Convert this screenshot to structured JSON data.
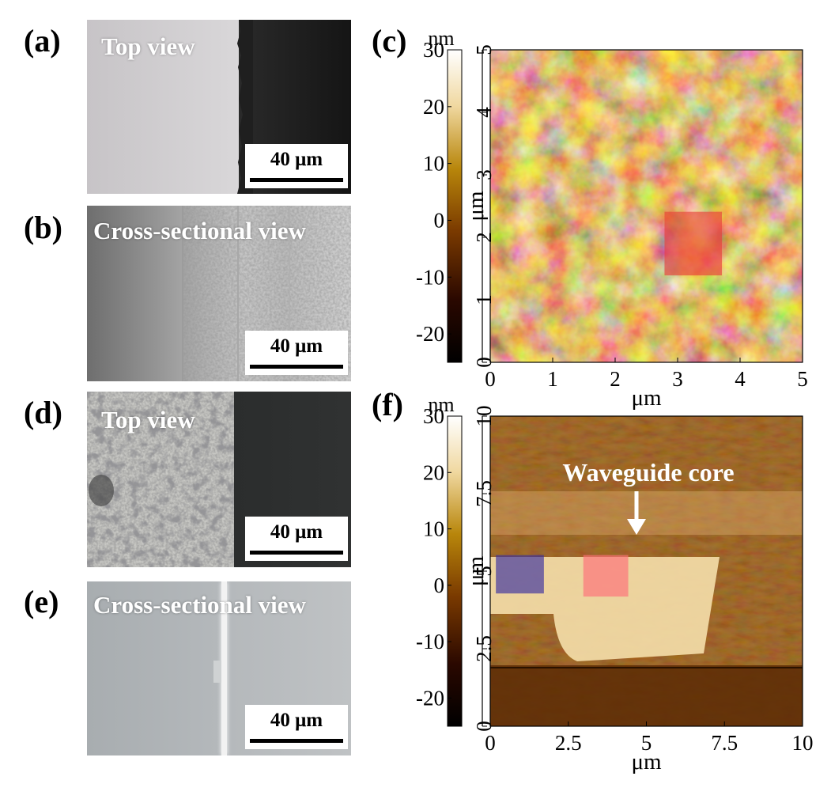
{
  "panels": {
    "a": {
      "label": "(a)",
      "caption": "Top view",
      "scalebar": "40 μm"
    },
    "b": {
      "label": "(b)",
      "caption": "Cross-sectional view",
      "scalebar": "40 μm"
    },
    "c": {
      "label": "(c)"
    },
    "d": {
      "label": "(d)",
      "caption": "Top view",
      "scalebar": "40 μm"
    },
    "e": {
      "label": "(e)",
      "caption": "Cross-sectional view",
      "scalebar": "40 μm"
    },
    "f": {
      "label": "(f)",
      "annotation": "Waveguide core"
    }
  },
  "chart_data": [
    {
      "type": "heatmap",
      "panel": "c",
      "colorbar": {
        "unit": "nm",
        "range": [
          -25,
          30
        ],
        "ticks": [
          "30",
          "20",
          "10",
          "0",
          "-10",
          "-20"
        ]
      },
      "xlabel": "μm",
      "ylabel": "μm",
      "xlim": [
        0,
        5
      ],
      "ylim": [
        0,
        5
      ],
      "xticks": [
        "0",
        "1",
        "2",
        "3",
        "4",
        "5"
      ],
      "yticks": [
        "0",
        "1",
        "2",
        "3",
        "4",
        "5"
      ],
      "highlights": [
        {
          "color": "#e8403a",
          "x": [
            2.8,
            3.7
          ],
          "y": [
            1.4,
            2.4
          ]
        }
      ]
    },
    {
      "type": "heatmap",
      "panel": "f",
      "colorbar": {
        "unit": "nm",
        "range": [
          -25,
          30
        ],
        "ticks": [
          "30",
          "20",
          "10",
          "0",
          "-10",
          "-20"
        ]
      },
      "xlabel": "μm",
      "ylabel": "μm",
      "xlim": [
        0,
        10
      ],
      "ylim": [
        0,
        10
      ],
      "xticks": [
        "0",
        "2.5",
        "5",
        "7.5",
        "10"
      ],
      "yticks": [
        "0",
        "2.5",
        "5",
        "7.5",
        "10"
      ],
      "highlights": [
        {
          "color": "#3a2fa0",
          "x": [
            0.2,
            1.7
          ],
          "y": [
            4.3,
            5.5
          ]
        },
        {
          "color": "#ff6f7a",
          "x": [
            3.0,
            4.4
          ],
          "y": [
            4.2,
            5.5
          ]
        }
      ]
    }
  ]
}
